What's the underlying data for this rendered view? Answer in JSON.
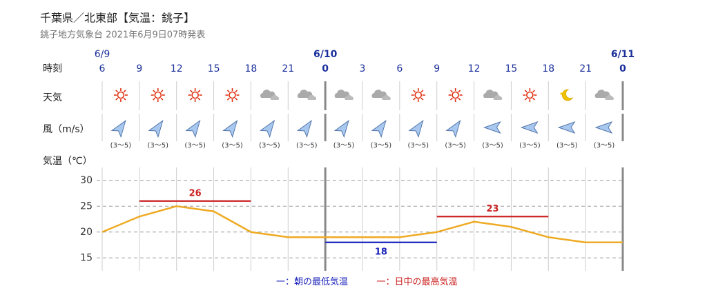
{
  "chart_data": {
    "type": "line",
    "title": "千葉県／北東部【気温：銚子】",
    "subtitle": "銚子地方気象台 2021年6月9日07時発表",
    "row_labels": {
      "time": "時刻",
      "weather": "天気",
      "wind": "風（m/s）",
      "temperature": "気温（℃）"
    },
    "categories": [
      "6",
      "9",
      "12",
      "15",
      "18",
      "21",
      "0",
      "3",
      "6",
      "9",
      "12",
      "15",
      "18",
      "21",
      "0"
    ],
    "dates": [
      "6/9",
      null,
      null,
      null,
      null,
      null,
      "6/10",
      null,
      null,
      null,
      null,
      null,
      null,
      null,
      "6/11"
    ],
    "weather": [
      "sunny",
      "sunny",
      "sunny",
      "sunny",
      "cloudy",
      "cloudy",
      "cloudy",
      "cloudy",
      "sunny",
      "sunny",
      "cloudy",
      "sunny",
      "clear-night",
      "cloudy"
    ],
    "wind": [
      {
        "direction": "SW",
        "speed": "(3～5)"
      },
      {
        "direction": "SW",
        "speed": "(3～5)"
      },
      {
        "direction": "SW",
        "speed": "(3～5)"
      },
      {
        "direction": "SW",
        "speed": "(3～5)"
      },
      {
        "direction": "SW",
        "speed": "(3～5)"
      },
      {
        "direction": "SW",
        "speed": "(3～5)"
      },
      {
        "direction": "SW",
        "speed": "(3～5)"
      },
      {
        "direction": "SW",
        "speed": "(3～5)"
      },
      {
        "direction": "SW",
        "speed": "(3～5)"
      },
      {
        "direction": "SW",
        "speed": "(3～5)"
      },
      {
        "direction": "E",
        "speed": "(3～5)"
      },
      {
        "direction": "E",
        "speed": "(3～5)"
      },
      {
        "direction": "E",
        "speed": "(3～5)"
      },
      {
        "direction": "E",
        "speed": "(3～5)"
      }
    ],
    "series": [
      {
        "name": "気温",
        "color": "#eeaa22",
        "values": [
          20,
          23,
          25,
          24,
          20,
          19,
          19,
          19,
          19,
          20,
          22,
          21,
          19,
          18,
          18
        ]
      },
      {
        "name": "朝の最低気温",
        "color": "#1a22bb",
        "values": [
          null,
          null,
          null,
          null,
          null,
          null,
          18,
          18,
          18,
          18,
          null,
          null,
          null,
          null,
          null
        ]
      },
      {
        "name": "日中の最高気温",
        "color": "#cc2222",
        "values": [
          null,
          26,
          26,
          26,
          26,
          null,
          null,
          null,
          null,
          23,
          23,
          23,
          23,
          null,
          null
        ]
      }
    ],
    "legend_prefix": "一：",
    "ylim": [
      12.5,
      32.5
    ],
    "yticks": [
      15,
      20,
      25,
      30
    ],
    "grid": true
  }
}
